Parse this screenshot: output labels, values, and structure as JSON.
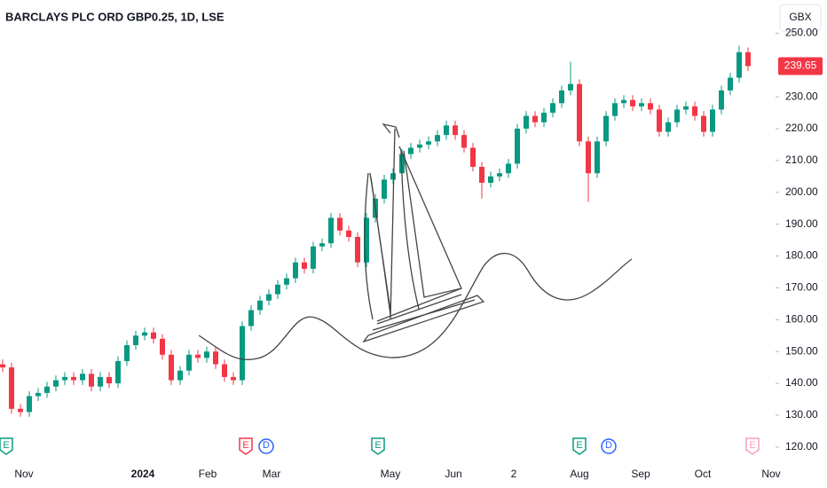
{
  "chart_data": {
    "type": "candlestick",
    "title": "BARCLAYS PLC ORD GBP0.25, 1D, LSE",
    "currency": "GBX",
    "categories": [
      "Nov",
      "2024",
      "Feb",
      "Mar",
      "May",
      "Jun",
      "2",
      "Aug",
      "Sep",
      "Oct",
      "Nov"
    ],
    "open": [
      146,
      145,
      132,
      131,
      136,
      137,
      139,
      141,
      142,
      141,
      143,
      139,
      142,
      140,
      147,
      152,
      155,
      156,
      154,
      149,
      141,
      144,
      149,
      148,
      150,
      146,
      142,
      141,
      158,
      163,
      166,
      168,
      171,
      173,
      178,
      176,
      183,
      184,
      192,
      188,
      186,
      178,
      192,
      198,
      204,
      206,
      212,
      214,
      215,
      216,
      218,
      221,
      218,
      214,
      208,
      203,
      205,
      206,
      209,
      220,
      224,
      222,
      225,
      228,
      232,
      234,
      216,
      206,
      216,
      224,
      228,
      229,
      227,
      228,
      226,
      219,
      222,
      226,
      227,
      224,
      219,
      226,
      232,
      236,
      244
    ],
    "high": [
      147.5,
      146.5,
      133.5,
      137.5,
      138.5,
      140.5,
      142.5,
      143.5,
      143.5,
      144.5,
      144.5,
      143.5,
      143.5,
      148.5,
      153.5,
      156.5,
      157.5,
      157.5,
      155.5,
      150.5,
      145.5,
      150.5,
      150.5,
      151.5,
      151.5,
      147.5,
      143.5,
      159.5,
      164.5,
      167.5,
      169.5,
      172.5,
      174.5,
      179.5,
      179.5,
      184.5,
      185.5,
      193.5,
      193.5,
      189.5,
      187.5,
      193.5,
      199.5,
      205.5,
      207.5,
      213.5,
      215.5,
      216.5,
      217.5,
      219.5,
      222.5,
      222.5,
      219.5,
      215.5,
      209.5,
      206.5,
      207.5,
      210.5,
      221.5,
      225.5,
      225.5,
      226.5,
      229.5,
      233.5,
      241,
      235.5,
      217.5,
      217.5,
      225.5,
      229.5,
      230.5,
      230.5,
      229.5,
      229.5,
      227.5,
      223.5,
      227.5,
      228.5,
      228.5,
      225.5,
      227.5,
      233.5,
      237.5,
      246,
      245.5
    ],
    "low": [
      143.5,
      130.5,
      129.5,
      129.5,
      134.5,
      135.5,
      137.5,
      139.5,
      139.5,
      139.5,
      137.5,
      137.5,
      138.5,
      138.5,
      145.5,
      150.5,
      153.5,
      152.5,
      147.5,
      139.5,
      139.5,
      142.5,
      146.5,
      146.5,
      144.5,
      140.5,
      139.5,
      139.5,
      156.5,
      161.5,
      164.5,
      166.5,
      169.5,
      171.5,
      174.5,
      174.5,
      181.5,
      182.5,
      186.5,
      184.5,
      176.5,
      176.5,
      190.5,
      196.5,
      202.5,
      204.5,
      210.5,
      212.5,
      213.5,
      214.5,
      216.5,
      216.5,
      212.5,
      206.5,
      198,
      201.5,
      203.5,
      204.5,
      207.5,
      218.5,
      220.5,
      220.5,
      223.5,
      226.5,
      230.5,
      214.5,
      197,
      204.5,
      214.5,
      222.5,
      226.5,
      225.5,
      225.5,
      224.5,
      217.5,
      217.5,
      220.5,
      224.5,
      222.5,
      217.5,
      217.5,
      224.5,
      230.5,
      234.5,
      238.15
    ],
    "close": [
      145,
      132,
      131,
      136,
      137,
      139,
      141,
      142,
      141,
      143,
      139,
      142,
      140,
      147,
      152,
      155,
      156,
      154,
      149,
      141,
      144,
      149,
      148,
      150,
      146,
      142,
      141,
      158,
      163,
      166,
      168,
      171,
      173,
      178,
      176,
      183,
      184,
      192,
      188,
      186,
      178,
      192,
      198,
      204,
      206,
      212,
      214,
      215,
      216,
      218,
      221,
      218,
      214,
      208,
      203,
      205,
      206,
      209,
      220,
      224,
      222,
      225,
      228,
      232,
      234,
      216,
      206,
      216,
      224,
      228,
      229,
      227,
      228,
      226,
      219,
      222,
      226,
      227,
      224,
      219,
      226,
      232,
      236,
      244,
      239.65
    ],
    "up_color": "#089981",
    "down_color": "#f23645",
    "ylim": [
      115.5,
      260.4
    ],
    "yticks": [
      {
        "value": 120,
        "label": "120.00"
      },
      {
        "value": 130,
        "label": "130.00"
      },
      {
        "value": 140,
        "label": "140.00"
      },
      {
        "value": 150,
        "label": "150.00"
      },
      {
        "value": 160,
        "label": "160.00"
      },
      {
        "value": 170,
        "label": "170.00"
      },
      {
        "value": 180,
        "label": "180.00"
      },
      {
        "value": 190,
        "label": "190.00"
      },
      {
        "value": 200,
        "label": "200.00"
      },
      {
        "value": 210,
        "label": "210.00"
      },
      {
        "value": 220,
        "label": "220.00"
      },
      {
        "value": 230,
        "label": "230.00"
      },
      {
        "value": 250,
        "label": "250.00"
      }
    ],
    "events": [
      {
        "label": "E",
        "color": "#089981"
      },
      {
        "label": "E",
        "color": "#f23645"
      },
      {
        "label": "D",
        "color": "#2962ff"
      },
      {
        "label": "E",
        "color": "#089981"
      },
      {
        "label": "E",
        "color": "#089981"
      },
      {
        "label": "D",
        "color": "#2962ff"
      },
      {
        "label": "E",
        "color": "#f7a1b8"
      }
    ]
  }
}
